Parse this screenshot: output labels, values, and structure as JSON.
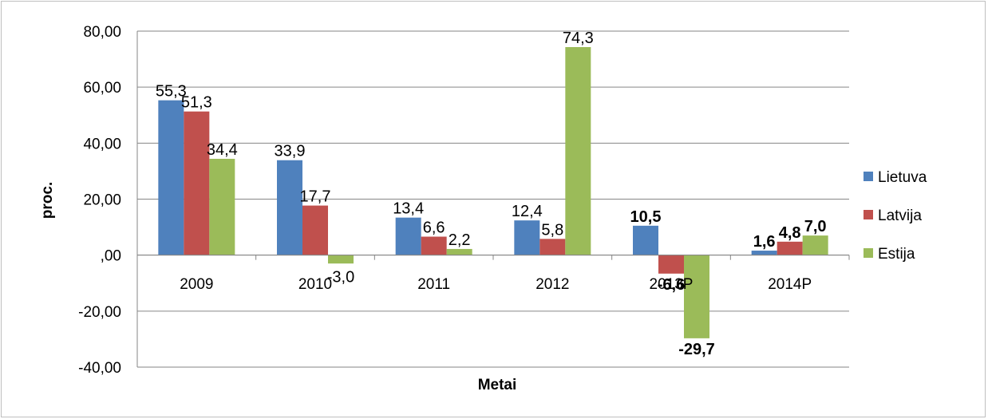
{
  "chart_data": {
    "type": "bar",
    "title": "",
    "xlabel": "Metai",
    "ylabel": "proc.",
    "ylim": [
      -40,
      80
    ],
    "yticks": [
      "80,00",
      "60,00",
      "40,00",
      "20,00",
      ",00",
      "-20,00",
      "-40,00"
    ],
    "ytick_values": [
      80,
      60,
      40,
      20,
      0,
      -20,
      -40
    ],
    "categories": [
      "2009",
      "2010",
      "2011",
      "2012",
      "2013P",
      "2014P"
    ],
    "grid": true,
    "legend_position": "right",
    "series": [
      {
        "name": "Lietuva",
        "color": "#4f81bd",
        "values": [
          55.3,
          33.9,
          13.4,
          12.4,
          10.5,
          1.6
        ],
        "labels": [
          "55,3",
          "33,9",
          "13,4",
          "12,4",
          "10,5",
          "1,6"
        ],
        "bold": [
          false,
          false,
          false,
          false,
          true,
          true
        ]
      },
      {
        "name": "Latvija",
        "color": "#c0504d",
        "values": [
          51.3,
          17.7,
          6.6,
          5.8,
          -6.6,
          4.8
        ],
        "labels": [
          "51,3",
          "17,7",
          "6,6",
          "5,8",
          "-6,6",
          "4,8"
        ],
        "bold": [
          false,
          false,
          false,
          false,
          true,
          true
        ]
      },
      {
        "name": "Estija",
        "color": "#9bbb59",
        "values": [
          34.4,
          -3.0,
          2.2,
          74.3,
          -29.7,
          7.0
        ],
        "labels": [
          "34,4",
          "-3,0",
          "2,2",
          "74,3",
          "-29,7",
          "7,0"
        ],
        "bold": [
          false,
          false,
          false,
          false,
          true,
          true
        ]
      }
    ]
  }
}
